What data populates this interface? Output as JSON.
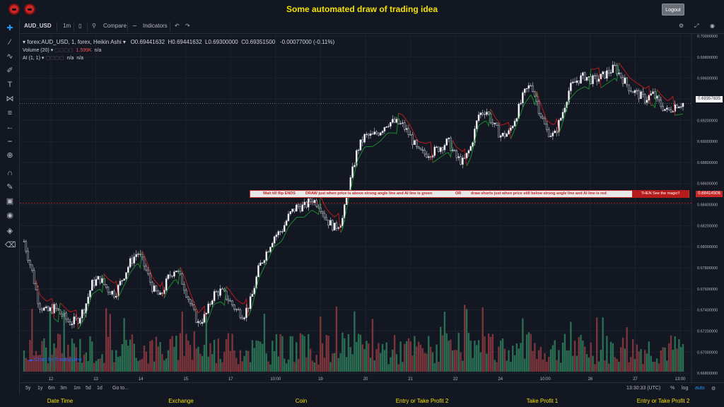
{
  "page": {
    "title": "Some automated draw of trading idea",
    "logout_label": "Logout"
  },
  "toolbar": {
    "symbol": "AUD_USD",
    "interval": "1m",
    "compare_label": "Compare",
    "indicators_label": "Indicators"
  },
  "legend": {
    "main": "forex:AUD_USD, 1, forex, Heikin Ashi",
    "open": "O0.69441632",
    "high": "H0.69441632",
    "low": "L0.69300000",
    "close": "C0.69351500",
    "change": "-0.00077000 (-0.11%)",
    "volume_label": "Volume (20)",
    "volume_value": "1.599K",
    "volume_na": "n/a",
    "ai_label": "AI (1, 1)",
    "ai_na1": "n/a",
    "ai_na2": "n/a"
  },
  "banner": {
    "text1": "Wait till flip ENDS",
    "text2": "DRAW just when  price is above strong angle line and AI line is green",
    "text3": "OR",
    "text4": "draw shorts just when price still below strong angle line and AI line is red",
    "text5": "THEN See the magic!!"
  },
  "price_tags": {
    "current": "0.69357835",
    "marker": "0.68414506"
  },
  "range_bar": {
    "items": [
      "5y",
      "1y",
      "6m",
      "3m",
      "1m",
      "5d",
      "1d",
      "Go to..."
    ],
    "clock": "13:30:33 (UTC)",
    "percent": "%",
    "log": "log",
    "auto": "auto"
  },
  "watermark": "Chart by TradingView",
  "footer": {
    "cols": [
      "Date Time",
      "Exchange",
      "Coin",
      "Entry or Take Profit 2",
      "Take Profit 1",
      "Entry or Take Profit 2"
    ]
  },
  "colors": {
    "up": "#26a69a",
    "down": "#ef5350",
    "vol_up": "#2e7d5b",
    "vol_down": "#8e3a40",
    "ai_line_up": "#1b8a2e",
    "ai_line_down": "#b71c1c",
    "title": "#f4e100"
  },
  "chart_data": {
    "type": "candlestick",
    "title": "",
    "x_ticks": [
      "12",
      "13",
      "14",
      "15",
      "17",
      "10:00",
      "19",
      "20",
      "21",
      "22",
      "24",
      "10:00",
      "26",
      "27",
      "13:00"
    ],
    "y_ticks": [
      "0.70000000",
      "0.69800000",
      "0.69600000",
      "0.69400000",
      "0.69200000",
      "0.69000000",
      "0.68800000",
      "0.68600000",
      "0.68400000",
      "0.68200000",
      "0.68000000",
      "0.67800000",
      "0.67600000",
      "0.67400000",
      "0.67200000",
      "0.67000000",
      "0.66800000"
    ],
    "ylim": [
      0.6672,
      0.7002
    ],
    "price_path": [
      [
        0,
        0.6805
      ],
      [
        1,
        0.6778
      ],
      [
        2,
        0.6745
      ],
      [
        3,
        0.6738
      ],
      [
        4,
        0.6742
      ],
      [
        5,
        0.6735
      ],
      [
        6,
        0.6728
      ],
      [
        7,
        0.673
      ],
      [
        8,
        0.6742
      ],
      [
        9,
        0.6765
      ],
      [
        10,
        0.677
      ],
      [
        11,
        0.676
      ],
      [
        12,
        0.6755
      ],
      [
        13,
        0.677
      ],
      [
        14,
        0.6785
      ],
      [
        15,
        0.6795
      ],
      [
        16,
        0.678
      ],
      [
        17,
        0.676
      ],
      [
        18,
        0.6752
      ],
      [
        19,
        0.677
      ],
      [
        20,
        0.678
      ],
      [
        21,
        0.6765
      ],
      [
        22,
        0.6745
      ],
      [
        23,
        0.6727
      ],
      [
        24,
        0.6735
      ],
      [
        25,
        0.6755
      ],
      [
        26,
        0.6758
      ],
      [
        27,
        0.675
      ],
      [
        28,
        0.674
      ],
      [
        29,
        0.6735
      ],
      [
        30,
        0.675
      ],
      [
        31,
        0.678
      ],
      [
        32,
        0.6795
      ],
      [
        33,
        0.681
      ],
      [
        34,
        0.6815
      ],
      [
        35,
        0.683
      ],
      [
        36,
        0.6838
      ],
      [
        37,
        0.6838
      ],
      [
        38,
        0.6845
      ],
      [
        39,
        0.684
      ],
      [
        40,
        0.6825
      ],
      [
        41,
        0.6818
      ],
      [
        42,
        0.6825
      ],
      [
        43,
        0.686
      ],
      [
        44,
        0.6892
      ],
      [
        45,
        0.6905
      ],
      [
        46,
        0.6905
      ],
      [
        47,
        0.691
      ],
      [
        48,
        0.6918
      ],
      [
        49,
        0.6918
      ],
      [
        50,
        0.6915
      ],
      [
        51,
        0.6905
      ],
      [
        52,
        0.689
      ],
      [
        53,
        0.6888
      ],
      [
        54,
        0.689
      ],
      [
        55,
        0.6895
      ],
      [
        56,
        0.69
      ],
      [
        57,
        0.6885
      ],
      [
        58,
        0.688
      ],
      [
        59,
        0.6895
      ],
      [
        60,
        0.6925
      ],
      [
        61,
        0.693
      ],
      [
        62,
        0.6915
      ],
      [
        63,
        0.6905
      ],
      [
        64,
        0.6908
      ],
      [
        65,
        0.6925
      ],
      [
        66,
        0.6945
      ],
      [
        67,
        0.6955
      ],
      [
        68,
        0.693
      ],
      [
        69,
        0.691
      ],
      [
        70,
        0.6905
      ],
      [
        71,
        0.6925
      ],
      [
        72,
        0.695
      ],
      [
        73,
        0.6958
      ],
      [
        74,
        0.6962
      ],
      [
        75,
        0.6958
      ],
      [
        76,
        0.696
      ],
      [
        77,
        0.6965
      ],
      [
        78,
        0.697
      ],
      [
        79,
        0.696
      ],
      [
        80,
        0.695
      ],
      [
        81,
        0.6945
      ],
      [
        82,
        0.694
      ],
      [
        83,
        0.6945
      ],
      [
        84,
        0.6935
      ],
      [
        85,
        0.6928
      ],
      [
        86,
        0.6935
      ],
      [
        87,
        0.6936
      ]
    ]
  }
}
